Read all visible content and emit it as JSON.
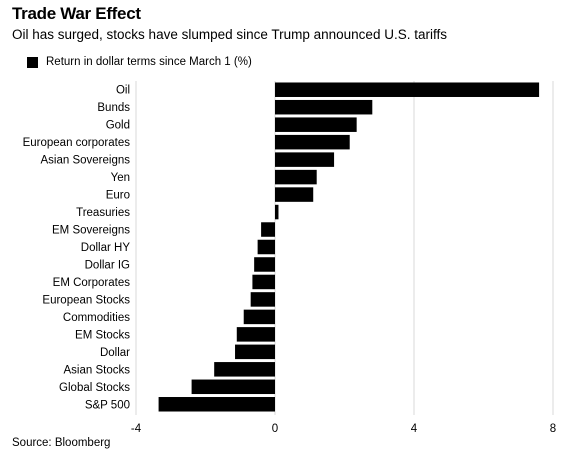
{
  "chart_data": {
    "type": "bar",
    "orientation": "horizontal",
    "title": "Trade War Effect",
    "subtitle": "Oil has surged, stocks have slumped since Trump announced U.S. tariffs",
    "legend": "Return in dollar terms since March 1 (%)",
    "source": "Source: Bloomberg",
    "categories": [
      "Oil",
      "Bunds",
      "Gold",
      "European corporates",
      "Asian Sovereigns",
      "Yen",
      "Euro",
      "Treasuries",
      "EM Sovereigns",
      "Dollar HY",
      "Dollar IG",
      "EM Corporates",
      "European Stocks",
      "Commodities",
      "EM Stocks",
      "Dollar",
      "Asian Stocks",
      "Global Stocks",
      "S&P 500"
    ],
    "values": [
      7.6,
      2.8,
      2.35,
      2.15,
      1.7,
      1.2,
      1.1,
      0.1,
      -0.4,
      -0.5,
      -0.6,
      -0.65,
      -0.7,
      -0.9,
      -1.1,
      -1.15,
      -1.75,
      -2.4,
      -3.35
    ],
    "xlim": [
      -4,
      8
    ],
    "xticks": [
      -4,
      0,
      4,
      8
    ],
    "grid": true,
    "bar_color": "#000000",
    "grid_color": "#d9d9d9"
  }
}
